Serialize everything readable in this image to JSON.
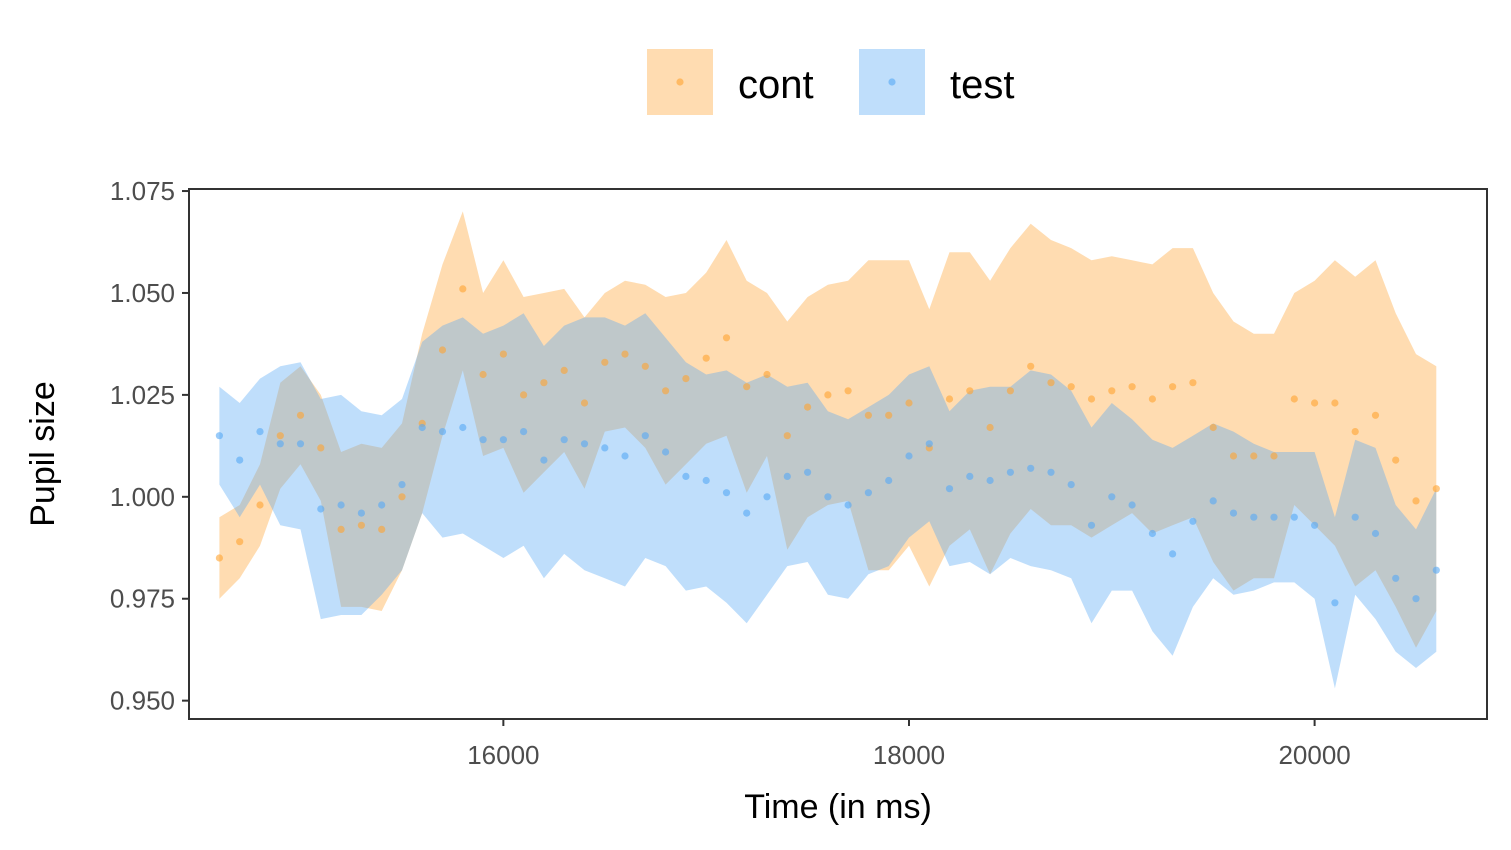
{
  "chart_data": {
    "type": "scatter",
    "xlabel": "Time (in ms)",
    "ylabel": "Pupil size",
    "xlim": [
      14450,
      20850
    ],
    "ylim": [
      0.9455,
      1.0755
    ],
    "xticks": [
      16000,
      18000,
      20000
    ],
    "xtick_labels": [
      "16000",
      "18000",
      "20000"
    ],
    "yticks": [
      0.95,
      0.975,
      1.0,
      1.025,
      1.05,
      1.075
    ],
    "ytick_labels": [
      "0.950",
      "0.975",
      "1.000",
      "1.025",
      "1.050",
      "1.075"
    ],
    "grid": false,
    "legend_position": "top",
    "x": [
      14600,
      14700,
      14800,
      14900,
      15000,
      15100,
      15200,
      15300,
      15400,
      15500,
      15600,
      15700,
      15800,
      15900,
      16000,
      16100,
      16200,
      16300,
      16400,
      16500,
      16600,
      16700,
      16800,
      16900,
      17000,
      17100,
      17200,
      17300,
      17400,
      17500,
      17600,
      17700,
      17800,
      17900,
      18000,
      18100,
      18200,
      18300,
      18400,
      18500,
      18600,
      18700,
      18800,
      18900,
      19000,
      19100,
      19200,
      19300,
      19400,
      19500,
      19600,
      19700,
      19800,
      19900,
      20000,
      20100,
      20200,
      20300,
      20400,
      20500,
      20600
    ],
    "series": [
      {
        "name": "cont",
        "color": "#FFA331",
        "values": [
          0.985,
          0.989,
          0.998,
          1.015,
          1.02,
          1.012,
          0.992,
          0.993,
          0.992,
          1.0,
          1.018,
          1.036,
          1.051,
          1.03,
          1.035,
          1.025,
          1.028,
          1.031,
          1.023,
          1.033,
          1.035,
          1.032,
          1.026,
          1.029,
          1.034,
          1.039,
          1.027,
          1.03,
          1.015,
          1.022,
          1.025,
          1.026,
          1.02,
          1.02,
          1.023,
          1.012,
          1.024,
          1.026,
          1.017,
          1.026,
          1.032,
          1.028,
          1.027,
          1.024,
          1.026,
          1.027,
          1.024,
          1.027,
          1.028,
          1.017,
          1.01,
          1.01,
          1.01,
          1.024,
          1.023,
          1.023,
          1.016,
          1.02,
          1.009,
          0.999,
          1.002
        ],
        "upper": [
          0.995,
          0.998,
          1.008,
          1.028,
          1.032,
          1.025,
          1.011,
          1.013,
          1.012,
          1.018,
          1.04,
          1.057,
          1.07,
          1.05,
          1.058,
          1.049,
          1.05,
          1.051,
          1.044,
          1.05,
          1.053,
          1.052,
          1.049,
          1.05,
          1.055,
          1.063,
          1.053,
          1.05,
          1.043,
          1.049,
          1.052,
          1.053,
          1.058,
          1.058,
          1.058,
          1.046,
          1.06,
          1.06,
          1.053,
          1.061,
          1.067,
          1.063,
          1.061,
          1.058,
          1.059,
          1.058,
          1.057,
          1.061,
          1.061,
          1.05,
          1.043,
          1.04,
          1.04,
          1.05,
          1.053,
          1.058,
          1.054,
          1.058,
          1.045,
          1.035,
          1.032
        ],
        "lower": [
          0.975,
          0.98,
          0.988,
          1.002,
          1.008,
          0.999,
          0.973,
          0.973,
          0.972,
          0.982,
          0.996,
          1.015,
          1.031,
          1.01,
          1.012,
          1.001,
          1.006,
          1.011,
          1.002,
          1.016,
          1.017,
          1.012,
          1.003,
          1.008,
          1.013,
          1.015,
          1.001,
          1.01,
          0.987,
          0.995,
          0.998,
          0.999,
          0.982,
          0.982,
          0.988,
          0.978,
          0.988,
          0.992,
          0.981,
          0.991,
          0.997,
          0.993,
          0.993,
          0.99,
          0.993,
          0.996,
          0.991,
          0.993,
          0.995,
          0.984,
          0.977,
          0.98,
          0.98,
          0.998,
          0.993,
          0.988,
          0.978,
          0.982,
          0.973,
          0.963,
          0.972
        ]
      },
      {
        "name": "test",
        "color": "#56A8F5",
        "values": [
          1.015,
          1.009,
          1.016,
          1.013,
          1.013,
          0.997,
          0.998,
          0.996,
          0.998,
          1.003,
          1.017,
          1.016,
          1.017,
          1.014,
          1.014,
          1.016,
          1.009,
          1.014,
          1.013,
          1.012,
          1.01,
          1.015,
          1.011,
          1.005,
          1.004,
          1.001,
          0.996,
          1.0,
          1.005,
          1.006,
          1.0,
          0.998,
          1.001,
          1.004,
          1.01,
          1.013,
          1.002,
          1.005,
          1.004,
          1.006,
          1.007,
          1.006,
          1.003,
          0.993,
          1.0,
          0.998,
          0.991,
          0.986,
          0.994,
          0.999,
          0.996,
          0.995,
          0.995,
          0.995,
          0.993,
          0.974,
          0.995,
          0.991,
          0.98,
          0.975,
          0.982
        ],
        "upper": [
          1.027,
          1.023,
          1.029,
          1.032,
          1.033,
          1.024,
          1.025,
          1.021,
          1.02,
          1.024,
          1.038,
          1.042,
          1.044,
          1.04,
          1.042,
          1.045,
          1.037,
          1.042,
          1.044,
          1.044,
          1.042,
          1.045,
          1.039,
          1.033,
          1.03,
          1.031,
          1.028,
          1.03,
          1.027,
          1.028,
          1.021,
          1.019,
          1.022,
          1.025,
          1.03,
          1.032,
          1.021,
          1.026,
          1.027,
          1.027,
          1.031,
          1.03,
          1.026,
          1.017,
          1.023,
          1.019,
          1.014,
          1.012,
          1.015,
          1.018,
          1.016,
          1.013,
          1.011,
          1.011,
          1.011,
          0.995,
          1.014,
          1.012,
          0.998,
          0.992,
          1.002
        ],
        "lower": [
          1.003,
          0.995,
          1.003,
          0.993,
          0.992,
          0.97,
          0.971,
          0.971,
          0.976,
          0.982,
          0.996,
          0.99,
          0.991,
          0.988,
          0.985,
          0.988,
          0.98,
          0.986,
          0.982,
          0.98,
          0.978,
          0.985,
          0.983,
          0.977,
          0.978,
          0.974,
          0.969,
          0.976,
          0.983,
          0.984,
          0.976,
          0.975,
          0.981,
          0.983,
          0.99,
          0.994,
          0.983,
          0.984,
          0.981,
          0.985,
          0.983,
          0.982,
          0.98,
          0.969,
          0.977,
          0.977,
          0.967,
          0.961,
          0.973,
          0.98,
          0.976,
          0.977,
          0.979,
          0.979,
          0.975,
          0.953,
          0.976,
          0.97,
          0.962,
          0.958,
          0.962
        ]
      }
    ]
  }
}
